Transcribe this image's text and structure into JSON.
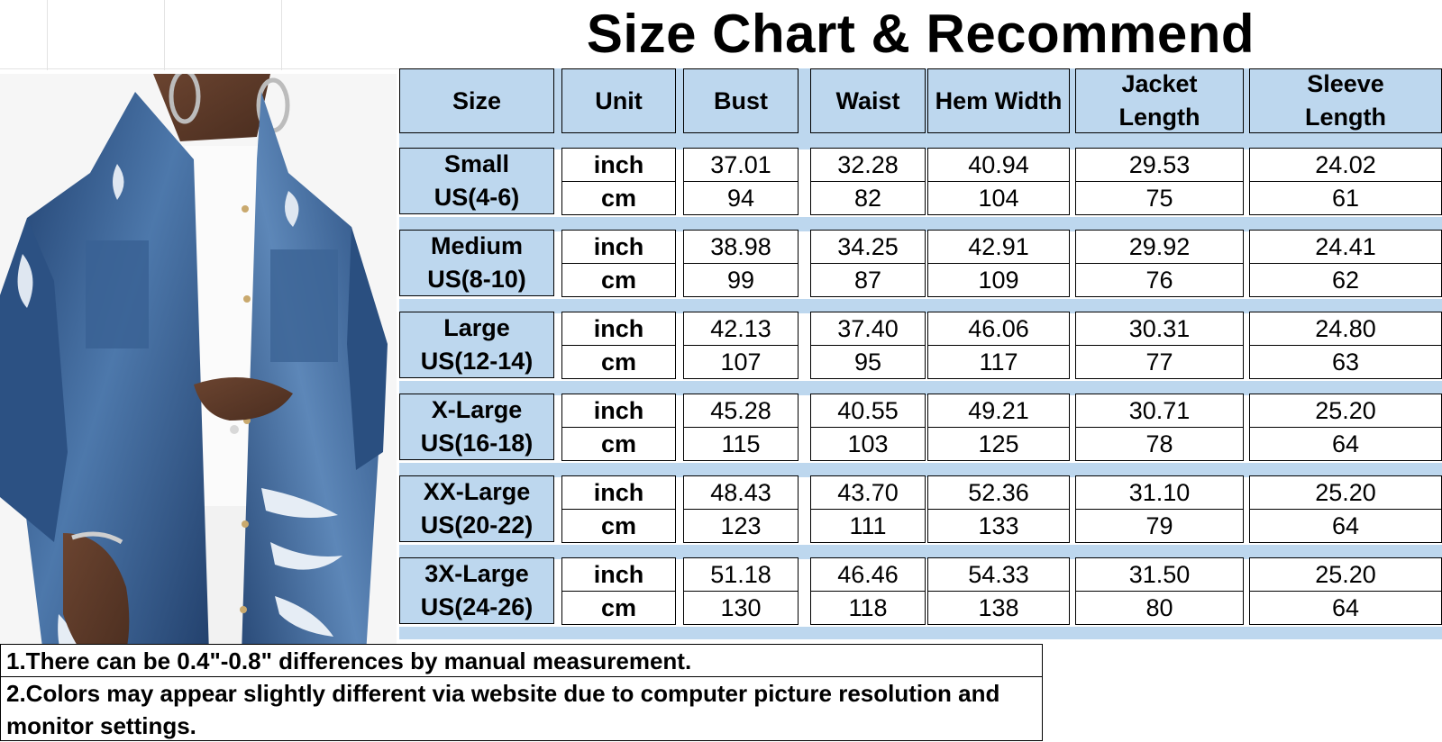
{
  "title": "Size Chart & Recommend",
  "headers": {
    "size": "Size",
    "unit": "Unit",
    "bust": "Bust",
    "waist": "Waist",
    "hem_width": "Hem Width",
    "jacket_length_1": "Jacket",
    "jacket_length_2": "Length",
    "sleeve_length_1": "Sleeve",
    "sleeve_length_2": "Length"
  },
  "rows": [
    {
      "name": "Small",
      "us": "US(4-6)",
      "unit_inch": "inch",
      "unit_cm": "cm",
      "inch": [
        "37.01",
        "32.28",
        "40.94",
        "29.53",
        "24.02"
      ],
      "cm": [
        "94",
        "82",
        "104",
        "75",
        "61"
      ]
    },
    {
      "name": "Medium",
      "us": "US(8-10)",
      "unit_inch": "inch",
      "unit_cm": "cm",
      "inch": [
        "38.98",
        "34.25",
        "42.91",
        "29.92",
        "24.41"
      ],
      "cm": [
        "99",
        "87",
        "109",
        "76",
        "62"
      ]
    },
    {
      "name": "Large",
      "us": "US(12-14)",
      "unit_inch": "inch",
      "unit_cm": "cm",
      "inch": [
        "42.13",
        "37.40",
        "46.06",
        "30.31",
        "24.80"
      ],
      "cm": [
        "107",
        "95",
        "117",
        "77",
        "63"
      ]
    },
    {
      "name": "X-Large",
      "us": "US(16-18)",
      "unit_inch": "inch",
      "unit_cm": "cm",
      "inch": [
        "45.28",
        "40.55",
        "49.21",
        "30.71",
        "25.20"
      ],
      "cm": [
        "115",
        "103",
        "125",
        "78",
        "64"
      ]
    },
    {
      "name": "XX-Large",
      "us": "US(20-22)",
      "unit_inch": "inch",
      "unit_cm": "cm",
      "inch": [
        "48.43",
        "43.70",
        "52.36",
        "31.10",
        "25.20"
      ],
      "cm": [
        "123",
        "111",
        "133",
        "79",
        "64"
      ]
    },
    {
      "name": "3X-Large",
      "us": "US(24-26)",
      "unit_inch": "inch",
      "unit_cm": "cm",
      "inch": [
        "51.18",
        "46.46",
        "54.33",
        "31.50",
        "25.20"
      ],
      "cm": [
        "130",
        "118",
        "138",
        "80",
        "64"
      ]
    }
  ],
  "notes": [
    "1.There can be 0.4\"-0.8\" differences by manual measurement.",
    "2.Colors may appear slightly different via website due to computer picture resolution and monitor settings."
  ],
  "colors": {
    "header_fill": "#bdd7ee",
    "denim": "#2a4d7e",
    "denim_light": "#6f93bd"
  }
}
